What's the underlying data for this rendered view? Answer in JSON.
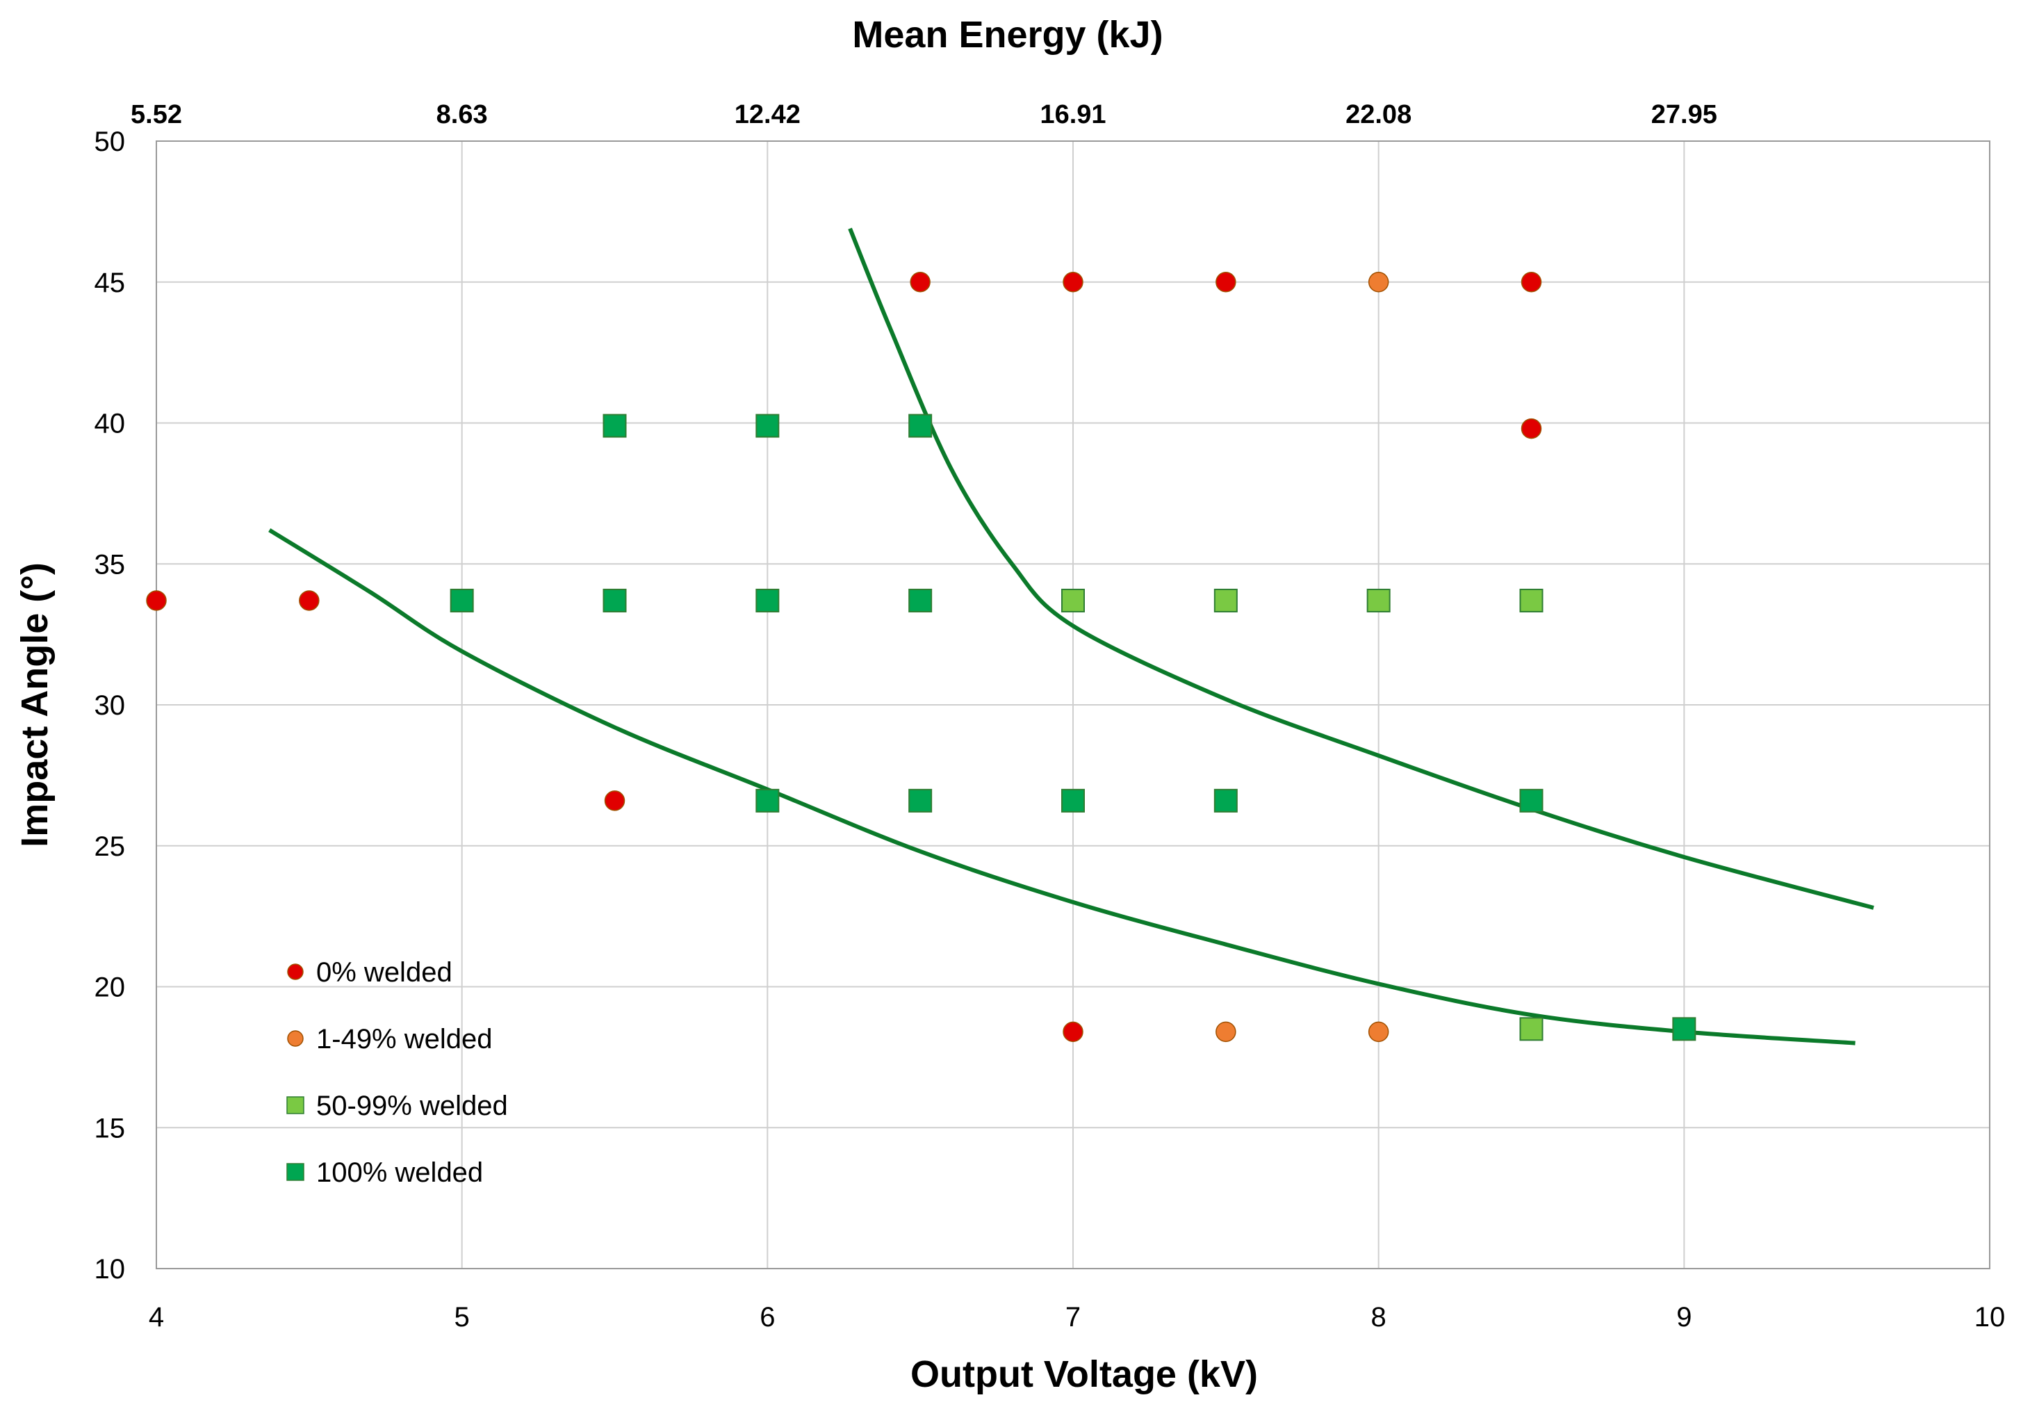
{
  "chart_data": {
    "type": "scatter",
    "title": "Mean Energy (kJ)",
    "xlabel": "Output Voltage (kV)",
    "ylabel": "Impact Angle (°)",
    "xlim": [
      4,
      10
    ],
    "ylim": [
      10,
      50
    ],
    "x_ticks": [
      "4",
      "5",
      "6",
      "7",
      "8",
      "9",
      "10"
    ],
    "y_ticks": [
      "10",
      "15",
      "20",
      "25",
      "30",
      "35",
      "40",
      "45",
      "50"
    ],
    "top_axis": {
      "label": "Mean Energy (kJ)",
      "ticks": [
        {
          "x": 4,
          "label": "5.52"
        },
        {
          "x": 5,
          "label": "8.63"
        },
        {
          "x": 6,
          "label": "12.42"
        },
        {
          "x": 7,
          "label": "16.91"
        },
        {
          "x": 8,
          "label": "22.08"
        },
        {
          "x": 9,
          "label": "27.95"
        }
      ]
    },
    "grid": true,
    "legend_position": "bottom-left",
    "series": [
      {
        "name": "0% welded",
        "marker": "circle",
        "color": "#e00000",
        "points": [
          [
            4,
            33.7
          ],
          [
            4.5,
            33.7
          ],
          [
            5.5,
            26.6
          ],
          [
            6.5,
            45
          ],
          [
            7,
            45
          ],
          [
            7.5,
            45
          ],
          [
            8.5,
            45
          ],
          [
            8.5,
            39.8
          ],
          [
            7,
            18.4
          ]
        ]
      },
      {
        "name": "1-49% welded",
        "marker": "circle",
        "color": "#ee7d31",
        "points": [
          [
            8,
            45
          ],
          [
            7.5,
            18.4
          ],
          [
            8,
            18.4
          ]
        ]
      },
      {
        "name": "50-99% welded",
        "marker": "square",
        "color": "#7ac943",
        "points": [
          [
            7,
            33.7
          ],
          [
            7.5,
            33.7
          ],
          [
            8,
            33.7
          ],
          [
            8.5,
            33.7
          ],
          [
            8.5,
            18.5
          ]
        ]
      },
      {
        "name": "100% welded",
        "marker": "square",
        "color": "#00a651",
        "points": [
          [
            5.5,
            39.9
          ],
          [
            6,
            39.9
          ],
          [
            6.5,
            39.9
          ],
          [
            5,
            33.7
          ],
          [
            5.5,
            33.7
          ],
          [
            6,
            33.7
          ],
          [
            6.5,
            33.7
          ],
          [
            6,
            26.6
          ],
          [
            6.5,
            26.6
          ],
          [
            7,
            26.6
          ],
          [
            7.5,
            26.6
          ],
          [
            8.5,
            26.6
          ],
          [
            9,
            18.5
          ]
        ]
      }
    ],
    "curves": [
      {
        "color": "#0b7a2a",
        "points": [
          [
            4.37,
            36.2
          ],
          [
            4.7,
            34.0
          ],
          [
            5.0,
            31.9
          ],
          [
            5.5,
            29.2
          ],
          [
            6.0,
            27.0
          ],
          [
            6.5,
            24.8
          ],
          [
            7.0,
            23.0
          ],
          [
            7.5,
            21.5
          ],
          [
            8.0,
            20.1
          ],
          [
            8.5,
            19.0
          ],
          [
            9.0,
            18.4
          ],
          [
            9.56,
            18.0
          ]
        ]
      },
      {
        "color": "#0b7a2a",
        "points": [
          [
            6.27,
            46.9
          ],
          [
            6.4,
            43.4
          ],
          [
            6.6,
            38.4
          ],
          [
            6.8,
            35.0
          ],
          [
            7.0,
            32.8
          ],
          [
            7.5,
            30.2
          ],
          [
            8.0,
            28.2
          ],
          [
            8.5,
            26.3
          ],
          [
            9.0,
            24.6
          ],
          [
            9.62,
            22.8
          ]
        ]
      }
    ]
  }
}
